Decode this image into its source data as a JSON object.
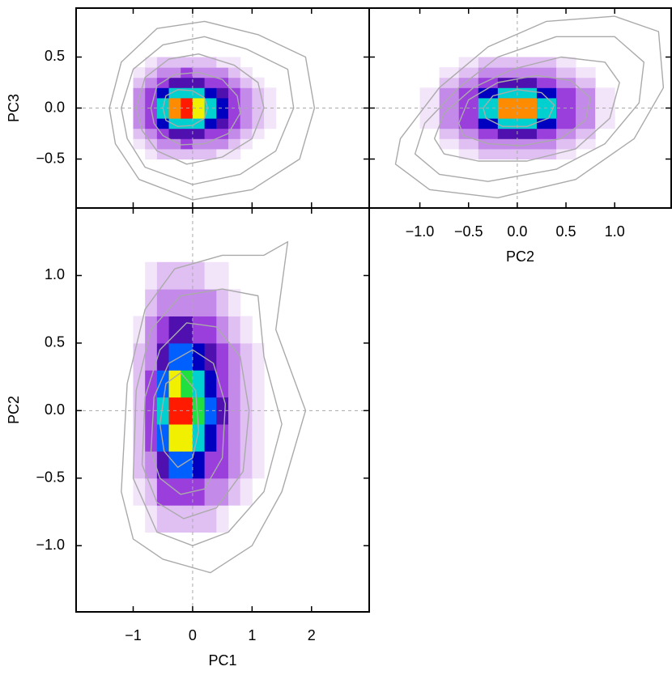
{
  "colormap": {
    "bounds": [
      0.005,
      0.02,
      0.05,
      0.12,
      0.25,
      0.35,
      0.45,
      0.55,
      0.68,
      0.8,
      0.88,
      0.93
    ],
    "colors": [
      "#f2e4f9",
      "#e0c0f3",
      "#c48ae9",
      "#9b3fdc",
      "#5010b0",
      "#0000c0",
      "#0060ff",
      "#00d0d0",
      "#20e040",
      "#f0f000",
      "#ff8c00",
      "#ff1a00"
    ]
  },
  "chart_data": [
    {
      "type": "heatmap",
      "ylabel": "PC3",
      "xlim": [
        -1.96,
        2.97
      ],
      "ylim": [
        -0.98,
        0.98
      ],
      "xticks": [
        -1,
        0,
        1,
        2
      ],
      "xtick_labels": false,
      "yticks": [
        {
          "value": -0.5,
          "label": "−0.5"
        },
        {
          "value": 0,
          "label": "0.0"
        },
        0.5
      ],
      "ytick_labels": true,
      "reference_lines": {
        "x": 0,
        "y": 0
      },
      "contour_color": "#aaaaaa",
      "x_edges": [
        -1.0,
        -0.8,
        -0.6,
        -0.4,
        -0.2,
        0.0,
        0.2,
        0.4,
        0.6,
        0.8,
        1.0,
        1.2,
        1.4,
        1.6
      ],
      "y_edges": [
        -0.5,
        -0.4,
        -0.3,
        -0.2,
        -0.1,
        0.0,
        0.1,
        0.2,
        0.3,
        0.4,
        0.5
      ],
      "density": [
        [
          0,
          0.01,
          0.02,
          0.03,
          0.03,
          0.03,
          0.02,
          0.01,
          0.01,
          0,
          0,
          0,
          0
        ],
        [
          0.01,
          0.03,
          0.07,
          0.11,
          0.12,
          0.1,
          0.07,
          0.05,
          0.02,
          0.01,
          0,
          0,
          0
        ],
        [
          0.02,
          0.09,
          0.21,
          0.32,
          0.33,
          0.29,
          0.21,
          0.13,
          0.07,
          0.03,
          0.01,
          0,
          0
        ],
        [
          0.05,
          0.17,
          0.41,
          0.65,
          0.67,
          0.57,
          0.41,
          0.26,
          0.14,
          0.06,
          0.02,
          0.01,
          0
        ],
        [
          0.07,
          0.24,
          0.59,
          0.91,
          0.94,
          0.81,
          0.59,
          0.36,
          0.19,
          0.09,
          0.03,
          0.01,
          0
        ],
        [
          0.07,
          0.24,
          0.59,
          0.91,
          0.94,
          0.81,
          0.59,
          0.36,
          0.19,
          0.09,
          0.03,
          0.01,
          0
        ],
        [
          0.05,
          0.17,
          0.41,
          0.65,
          0.67,
          0.57,
          0.41,
          0.26,
          0.14,
          0.06,
          0.02,
          0.01,
          0
        ],
        [
          0.02,
          0.09,
          0.21,
          0.32,
          0.33,
          0.29,
          0.21,
          0.13,
          0.07,
          0.03,
          0.01,
          0,
          0
        ],
        [
          0.01,
          0.03,
          0.07,
          0.11,
          0.12,
          0.1,
          0.07,
          0.05,
          0.02,
          0.01,
          0,
          0,
          0
        ],
        [
          0,
          0.01,
          0.02,
          0.03,
          0.03,
          0.03,
          0.02,
          0.01,
          0.01,
          0,
          0,
          0,
          0
        ]
      ],
      "contours": [
        {
          "x": [
            -1.4,
            -1.2,
            -0.6,
            0.2,
            1.1,
            1.9,
            2.05,
            1.8,
            1.0,
            0,
            -0.9,
            -1.3
          ],
          "y": [
            0,
            0.45,
            0.78,
            0.85,
            0.72,
            0.5,
            0,
            -0.5,
            -0.8,
            -0.9,
            -0.7,
            -0.35
          ]
        },
        {
          "x": [
            -1.2,
            -1.0,
            -0.5,
            0.2,
            0.9,
            1.6,
            1.7,
            1.4,
            0.8,
            0,
            -0.8,
            -1.1
          ],
          "y": [
            0,
            0.38,
            0.62,
            0.7,
            0.58,
            0.38,
            0,
            -0.42,
            -0.65,
            -0.75,
            -0.58,
            -0.3
          ]
        },
        {
          "x": [
            -0.95,
            -0.8,
            -0.4,
            0.1,
            0.7,
            1.1,
            1.2,
            1.0,
            0.5,
            -0.1,
            -0.6,
            -0.85
          ],
          "y": [
            0,
            0.3,
            0.48,
            0.53,
            0.42,
            0.25,
            0,
            -0.3,
            -0.48,
            -0.55,
            -0.42,
            -0.22
          ]
        },
        {
          "x": [
            -0.7,
            -0.6,
            -0.3,
            0.1,
            0.5,
            0.75,
            0.8,
            0.6,
            0.2,
            -0.2,
            -0.5,
            -0.65
          ],
          "y": [
            0,
            0.22,
            0.33,
            0.35,
            0.28,
            0.12,
            -0.05,
            -0.25,
            -0.35,
            -0.36,
            -0.27,
            -0.15
          ]
        },
        {
          "x": [
            -0.5,
            -0.45,
            -0.25,
            0,
            0.2,
            0.25,
            0.2,
            0,
            -0.25,
            -0.45
          ],
          "y": [
            0,
            0.12,
            0.18,
            0.17,
            0.1,
            0,
            -0.1,
            -0.17,
            -0.18,
            -0.12
          ]
        }
      ]
    },
    {
      "type": "heatmap",
      "xlabel": "PC2",
      "xlim": [
        -1.52,
        1.58
      ],
      "ylim": [
        -0.98,
        0.98
      ],
      "xticks": [
        {
          "value": -1,
          "label": "−1.0"
        },
        {
          "value": -0.5,
          "label": "−0.5"
        },
        {
          "value": 0,
          "label": "0.0"
        },
        0.5,
        {
          "value": 1,
          "label": "1.0"
        }
      ],
      "xtick_labels": true,
      "yticks": [
        -0.5,
        0,
        0.5
      ],
      "ytick_labels": false,
      "reference_lines": {
        "x": 0,
        "y": 0
      },
      "contour_color": "#aaaaaa",
      "x_edges": [
        -1.0,
        -0.8,
        -0.6,
        -0.4,
        -0.2,
        0.0,
        0.2,
        0.4,
        0.6,
        0.8,
        1.0
      ],
      "y_edges": [
        -0.5,
        -0.4,
        -0.3,
        -0.2,
        -0.1,
        0.0,
        0.1,
        0.2,
        0.3,
        0.4,
        0.5
      ],
      "density": [
        [
          0,
          0,
          0.01,
          0.02,
          0.03,
          0.03,
          0.02,
          0.01,
          0,
          0
        ],
        [
          0,
          0.01,
          0.03,
          0.07,
          0.11,
          0.11,
          0.07,
          0.03,
          0.01,
          0
        ],
        [
          0,
          0.02,
          0.09,
          0.21,
          0.32,
          0.32,
          0.21,
          0.09,
          0.02,
          0
        ],
        [
          0.01,
          0.05,
          0.17,
          0.41,
          0.65,
          0.65,
          0.41,
          0.17,
          0.05,
          0.01
        ],
        [
          0.01,
          0.07,
          0.24,
          0.59,
          0.91,
          0.91,
          0.59,
          0.24,
          0.07,
          0.01
        ],
        [
          0.01,
          0.07,
          0.24,
          0.59,
          0.91,
          0.91,
          0.59,
          0.24,
          0.07,
          0.01
        ],
        [
          0.01,
          0.05,
          0.17,
          0.41,
          0.65,
          0.65,
          0.41,
          0.17,
          0.05,
          0.01
        ],
        [
          0,
          0.02,
          0.09,
          0.21,
          0.32,
          0.32,
          0.21,
          0.09,
          0.02,
          0
        ],
        [
          0,
          0.01,
          0.03,
          0.07,
          0.11,
          0.11,
          0.07,
          0.03,
          0.01,
          0
        ],
        [
          0,
          0,
          0.01,
          0.02,
          0.03,
          0.03,
          0.02,
          0.01,
          0,
          0
        ]
      ],
      "contours": [
        {
          "x": [
            -1.25,
            -1.2,
            -0.8,
            -0.3,
            0.3,
            1.0,
            1.45,
            1.5,
            1.2,
            0.6,
            -0.2,
            -0.9
          ],
          "y": [
            -0.55,
            -0.3,
            0.2,
            0.6,
            0.85,
            0.9,
            0.75,
            0.2,
            -0.3,
            -0.7,
            -0.88,
            -0.8
          ]
        },
        {
          "x": [
            -1.05,
            -0.95,
            -0.6,
            -0.2,
            0.4,
            1.0,
            1.3,
            1.25,
            0.9,
            0.4,
            -0.3,
            -0.8
          ],
          "y": [
            -0.45,
            -0.15,
            0.2,
            0.5,
            0.7,
            0.7,
            0.45,
            0.05,
            -0.35,
            -0.6,
            -0.72,
            -0.65
          ]
        },
        {
          "x": [
            -0.85,
            -0.75,
            -0.45,
            -0.05,
            0.45,
            0.9,
            1.05,
            0.95,
            0.6,
            0.1,
            -0.4,
            -0.75
          ],
          "y": [
            -0.3,
            -0.05,
            0.2,
            0.38,
            0.5,
            0.45,
            0.25,
            -0.1,
            -0.4,
            -0.52,
            -0.52,
            -0.45
          ]
        },
        {
          "x": [
            -0.6,
            -0.5,
            -0.2,
            0.2,
            0.55,
            0.75,
            0.7,
            0.45,
            0.05,
            -0.3,
            -0.55
          ],
          "y": [
            -0.15,
            0.08,
            0.25,
            0.32,
            0.27,
            0.1,
            -0.12,
            -0.3,
            -0.37,
            -0.35,
            -0.27
          ]
        },
        {
          "x": [
            -0.35,
            -0.25,
            0,
            0.25,
            0.38,
            0.32,
            0.1,
            -0.15,
            -0.32
          ],
          "y": [
            0,
            0.12,
            0.18,
            0.15,
            0.03,
            -0.1,
            -0.18,
            -0.18,
            -0.1
          ]
        }
      ]
    },
    {
      "type": "heatmap",
      "xlabel": "PC1",
      "ylabel": "PC2",
      "xlim": [
        -1.96,
        2.97
      ],
      "ylim": [
        -1.49,
        1.5
      ],
      "xticks": [
        {
          "value": -1,
          "label": "−1"
        },
        0,
        1,
        2
      ],
      "xtick_labels": true,
      "yticks": [
        {
          "value": -1,
          "label": "−1.0"
        },
        {
          "value": -0.5,
          "label": "−0.5"
        },
        {
          "value": 0,
          "label": "0.0"
        },
        0.5,
        {
          "value": 1,
          "label": "1.0"
        }
      ],
      "ytick_labels": true,
      "reference_lines": {
        "x": 0,
        "y": 0
      },
      "contour_color": "#aaaaaa",
      "x_edges": [
        -1.0,
        -0.8,
        -0.6,
        -0.4,
        -0.2,
        0.0,
        0.2,
        0.4,
        0.6,
        0.8,
        1.0,
        1.2
      ],
      "y_edges": [
        -0.9,
        -0.7,
        -0.5,
        -0.3,
        -0.1,
        0.1,
        0.3,
        0.5,
        0.7,
        0.9,
        1.1
      ],
      "density": [
        [
          0,
          0.01,
          0.02,
          0.04,
          0.04,
          0.03,
          0.02,
          0.01,
          0,
          0,
          0
        ],
        [
          0.01,
          0.04,
          0.12,
          0.19,
          0.18,
          0.14,
          0.09,
          0.05,
          0.02,
          0.01,
          0
        ],
        [
          0.02,
          0.1,
          0.31,
          0.49,
          0.48,
          0.37,
          0.24,
          0.13,
          0.06,
          0.02,
          0.01
        ],
        [
          0.03,
          0.18,
          0.54,
          0.86,
          0.84,
          0.65,
          0.41,
          0.22,
          0.1,
          0.04,
          0.01
        ],
        [
          0.03,
          0.2,
          0.61,
          0.98,
          0.95,
          0.74,
          0.47,
          0.25,
          0.11,
          0.04,
          0.01
        ],
        [
          0.02,
          0.16,
          0.5,
          0.8,
          0.78,
          0.61,
          0.39,
          0.21,
          0.09,
          0.03,
          0.01
        ],
        [
          0.02,
          0.11,
          0.32,
          0.52,
          0.5,
          0.39,
          0.25,
          0.13,
          0.06,
          0.02,
          0.01
        ],
        [
          0.01,
          0.05,
          0.16,
          0.26,
          0.26,
          0.2,
          0.13,
          0.07,
          0.03,
          0.01,
          0
        ],
        [
          0,
          0.02,
          0.06,
          0.1,
          0.1,
          0.07,
          0.05,
          0.03,
          0.01,
          0,
          0
        ],
        [
          0,
          0.01,
          0.02,
          0.03,
          0.03,
          0.02,
          0.01,
          0.01,
          0,
          0,
          0
        ]
      ],
      "contours": [
        {
          "x": [
            -1.2,
            -1.1,
            -0.8,
            -0.3,
            0.5,
            1.2,
            1.6,
            1.4,
            1.9,
            1.5,
            1.0,
            0.3,
            -0.5,
            -1.0
          ],
          "y": [
            -0.6,
            0.2,
            0.75,
            1.05,
            1.15,
            1.15,
            1.25,
            0.6,
            0.0,
            -0.6,
            -1.0,
            -1.2,
            -1.1,
            -0.95
          ]
        },
        {
          "x": [
            -1.0,
            -0.95,
            -0.7,
            -0.2,
            0.5,
            1.1,
            1.2,
            1.5,
            1.2,
            0.6,
            0,
            -0.6
          ],
          "y": [
            -0.5,
            0.15,
            0.6,
            0.85,
            0.9,
            0.85,
            0.4,
            -0.1,
            -0.6,
            -0.9,
            -1.0,
            -0.9
          ]
        },
        {
          "x": [
            -0.85,
            -0.8,
            -0.55,
            -0.1,
            0.4,
            0.8,
            0.95,
            0.85,
            0.4,
            -0.15,
            -0.6
          ],
          "y": [
            -0.4,
            0.1,
            0.45,
            0.65,
            0.62,
            0.4,
            0,
            -0.45,
            -0.72,
            -0.8,
            -0.68
          ]
        },
        {
          "x": [
            -0.7,
            -0.65,
            -0.4,
            0,
            0.35,
            0.55,
            0.5,
            0.2,
            -0.2,
            -0.55
          ],
          "y": [
            -0.3,
            0.1,
            0.35,
            0.45,
            0.35,
            0.05,
            -0.35,
            -0.58,
            -0.62,
            -0.5
          ]
        },
        {
          "x": [
            -0.55,
            -0.45,
            -0.2,
            0.05,
            0.1,
            0,
            -0.25,
            -0.48
          ],
          "y": [
            -0.1,
            0.2,
            0.28,
            0.15,
            -0.15,
            -0.35,
            -0.42,
            -0.3
          ]
        }
      ]
    }
  ]
}
